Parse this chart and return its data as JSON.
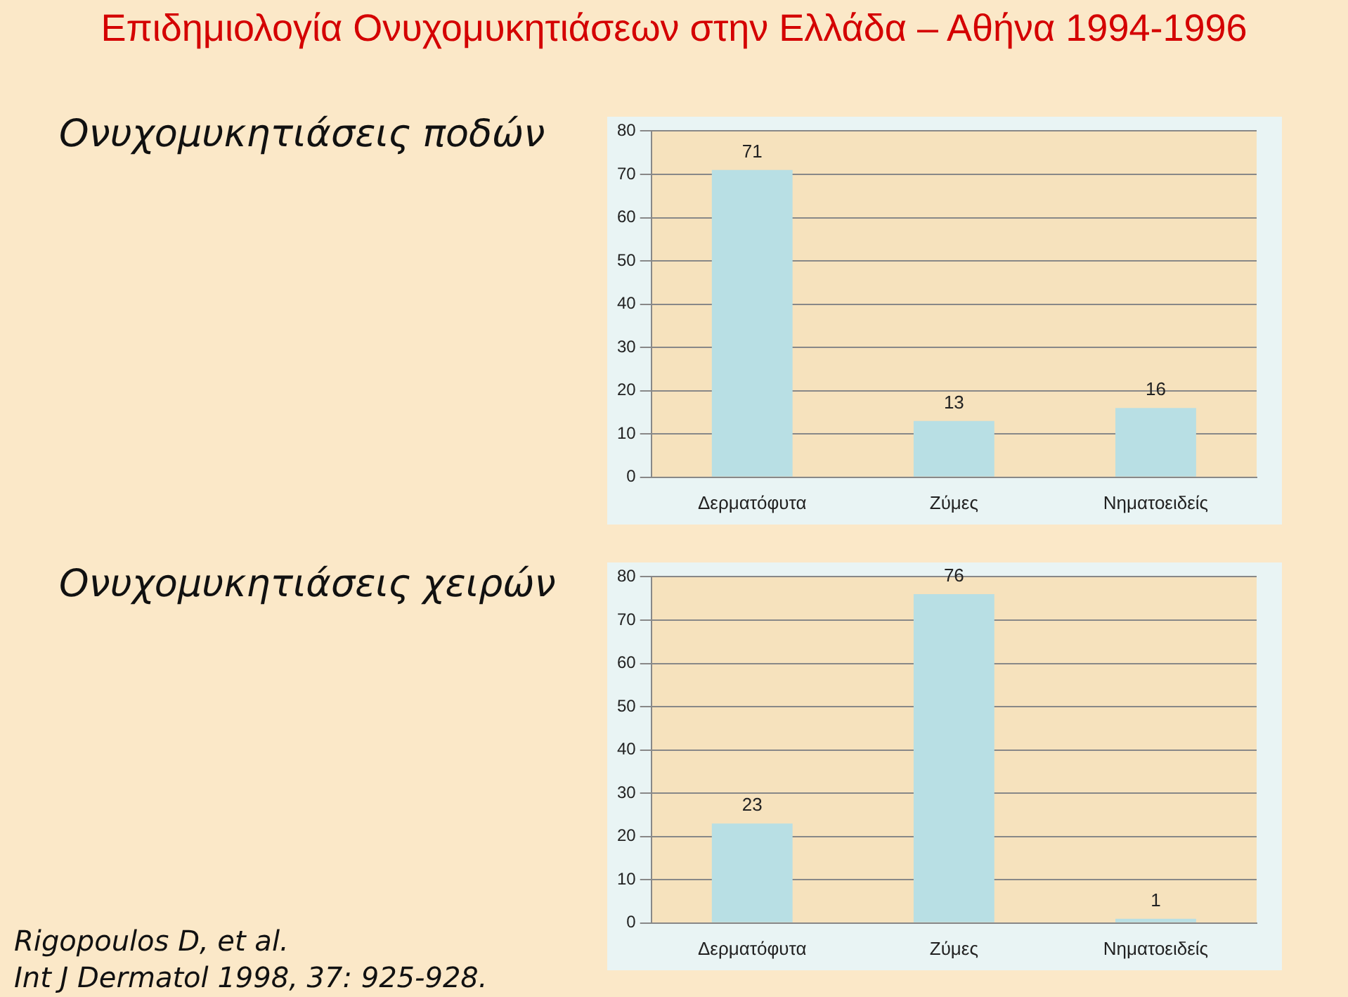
{
  "chart_data": [
    {
      "type": "bar",
      "title": "Ονυχομυκητιάσεις ποδών",
      "annotations": [
        "Επιδημιολογία Ονυχομυκητιάσεων στην Ελλάδα – Αθήνα 1994-1996"
      ],
      "categories": [
        "Δερματόφυτα",
        "Ζύμες",
        "Νηματοειδείς"
      ],
      "values": [
        71,
        13,
        16
      ],
      "color": "#b8dfe4",
      "ylim": [
        0,
        80
      ],
      "yticks": [
        0,
        10,
        20,
        30,
        40,
        50,
        60,
        70,
        80
      ],
      "grid": "y",
      "data_labels": true,
      "legend": false
    },
    {
      "type": "bar",
      "title": "Ονυχομυκητιάσεις χειρών",
      "annotations": [
        "Rigopoulos D, et al.",
        "Int J Dermatol 1998, 37: 925-928."
      ],
      "categories": [
        "Δερματόφυτα",
        "Ζύμες",
        "Νηματοειδείς"
      ],
      "values": [
        23,
        76,
        1
      ],
      "color": "#b8dfe4",
      "ylim": [
        0,
        80
      ],
      "yticks": [
        0,
        10,
        20,
        30,
        40,
        50,
        60,
        70,
        80
      ],
      "grid": "y",
      "data_labels": true,
      "legend": false
    }
  ]
}
